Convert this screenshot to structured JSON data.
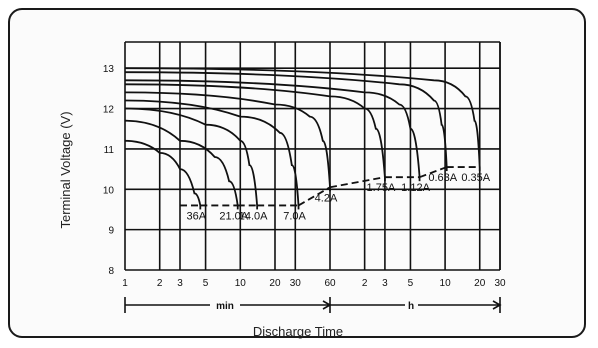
{
  "chart_data": {
    "type": "line",
    "title": "",
    "xlabel": "Discharge Time",
    "ylabel": "Terminal Voltage (V)",
    "ylim": [
      8,
      13.5
    ],
    "y_ticks": [
      "8",
      "9",
      "10",
      "11",
      "12",
      "13"
    ],
    "x_ticks": [
      "1",
      "2",
      "3",
      "5",
      "10",
      "20",
      "30",
      "60",
      "2",
      "3",
      "5",
      "10",
      "20",
      "30"
    ],
    "x_unit_labels": [
      "min",
      "h"
    ],
    "grid": true,
    "x_scale": "log",
    "series": [
      {
        "name": "36A",
        "cutoff_voltage": 9.6,
        "points": [
          [
            1,
            11.2
          ],
          [
            2,
            10.9
          ],
          [
            3,
            10.5
          ],
          [
            4,
            9.9
          ],
          [
            4.5,
            9.6
          ]
        ]
      },
      {
        "name": "21.0A",
        "cutoff_voltage": 9.6,
        "points": [
          [
            1,
            11.7
          ],
          [
            3,
            11.2
          ],
          [
            6,
            10.8
          ],
          [
            8,
            10.2
          ],
          [
            9.5,
            9.6
          ]
        ]
      },
      {
        "name": "14.0A",
        "cutoff_voltage": 9.6,
        "points": [
          [
            1,
            12.0
          ],
          [
            5,
            11.6
          ],
          [
            10,
            11.2
          ],
          [
            12,
            10.6
          ],
          [
            14,
            9.6
          ]
        ]
      },
      {
        "name": "7.0A",
        "cutoff_voltage": 9.6,
        "points": [
          [
            1,
            12.2
          ],
          [
            10,
            11.8
          ],
          [
            22,
            11.4
          ],
          [
            28,
            10.6
          ],
          [
            32,
            9.6
          ]
        ]
      },
      {
        "name": "4.2A",
        "cutoff_voltage": 10.05,
        "points": [
          [
            1,
            12.4
          ],
          [
            20,
            12.1
          ],
          [
            40,
            11.8
          ],
          [
            52,
            11.2
          ],
          [
            60,
            10.05
          ]
        ]
      },
      {
        "name": "1.75A",
        "cutoff_voltage": 10.3,
        "points": [
          [
            1,
            12.6
          ],
          [
            60,
            12.3
          ],
          [
            120,
            12.0
          ],
          [
            150,
            11.5
          ],
          [
            180,
            10.3
          ]
        ]
      },
      {
        "name": "1.12A",
        "cutoff_voltage": 10.3,
        "points": [
          [
            1,
            12.7
          ],
          [
            120,
            12.4
          ],
          [
            240,
            12.1
          ],
          [
            300,
            11.5
          ],
          [
            360,
            10.3
          ]
        ]
      },
      {
        "name": "0.63A",
        "cutoff_voltage": 10.55,
        "points": [
          [
            1,
            12.9
          ],
          [
            240,
            12.6
          ],
          [
            480,
            12.2
          ],
          [
            560,
            11.6
          ],
          [
            620,
            10.55
          ]
        ]
      },
      {
        "name": "0.35A",
        "cutoff_voltage": 10.55,
        "points": [
          [
            1,
            13.0
          ],
          [
            480,
            12.7
          ],
          [
            900,
            12.3
          ],
          [
            1080,
            11.7
          ],
          [
            1200,
            10.55
          ]
        ]
      }
    ]
  }
}
